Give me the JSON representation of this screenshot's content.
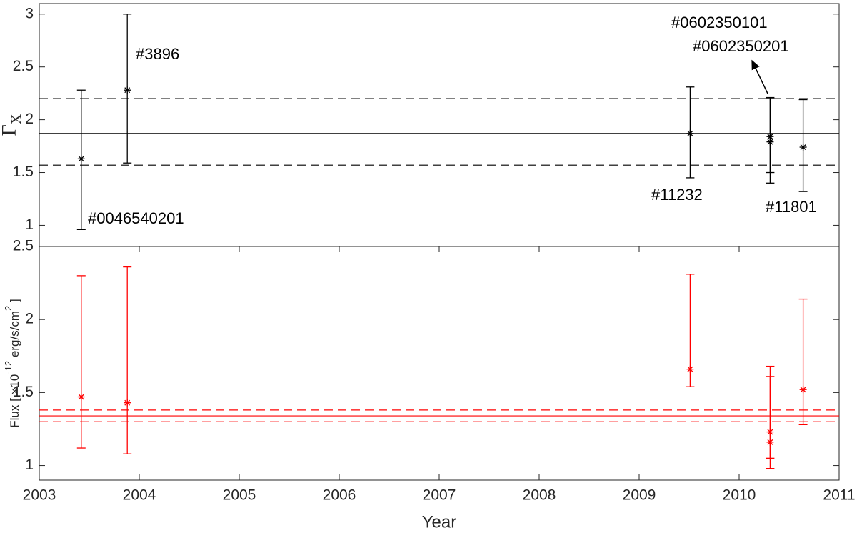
{
  "chart_data": [
    {
      "type": "errorbar",
      "ylabel": "Γ",
      "ylabel_subscript": "X",
      "color": "#000000",
      "x": [
        2003.42,
        2003.88,
        2009.51,
        2010.31,
        2010.31,
        2010.64
      ],
      "values": [
        1.63,
        2.28,
        1.87,
        1.84,
        1.79,
        1.74
      ],
      "lower": [
        0.96,
        1.59,
        1.45,
        1.5,
        1.4,
        1.32
      ],
      "upper": [
        2.28,
        3.0,
        2.31,
        2.21,
        2.2,
        2.19
      ],
      "hlines": [
        {
          "value": 1.87,
          "style": "solid"
        },
        {
          "value": 2.2,
          "style": "dashed"
        },
        {
          "value": 1.57,
          "style": "dashed"
        }
      ],
      "xlim": [
        2003,
        2011
      ],
      "ylim": [
        0.8,
        3.1
      ],
      "yticks": [
        1,
        1.5,
        2,
        2.5,
        3
      ],
      "annotations": [
        "#0046540201",
        "#3896",
        "#11232",
        "#0602350101",
        "#0602350201",
        "#11801"
      ]
    },
    {
      "type": "errorbar",
      "xlabel": "Year",
      "ylabel_parts": [
        "Flux [ ×10",
        "-12",
        " erg/s/cm",
        "2",
        " ]"
      ],
      "color": "#ff0000",
      "x": [
        2003.42,
        2003.88,
        2009.51,
        2010.31,
        2010.31,
        2010.64
      ],
      "values": [
        1.47,
        1.43,
        1.66,
        1.23,
        1.16,
        1.52
      ],
      "lower": [
        1.12,
        1.08,
        1.54,
        1.05,
        0.98,
        1.28
      ],
      "upper": [
        2.3,
        2.36,
        2.31,
        1.68,
        1.61,
        2.14
      ],
      "hlines": [
        {
          "value": 1.34,
          "style": "solid"
        },
        {
          "value": 1.38,
          "style": "dashed"
        },
        {
          "value": 1.3,
          "style": "dashed"
        }
      ],
      "xlim": [
        2003,
        2011
      ],
      "ylim": [
        0.9,
        2.5
      ],
      "yticks": [
        1,
        1.5,
        2,
        2.5
      ],
      "xticks": [
        2003,
        2004,
        2005,
        2006,
        2007,
        2008,
        2009,
        2010,
        2011
      ]
    }
  ]
}
